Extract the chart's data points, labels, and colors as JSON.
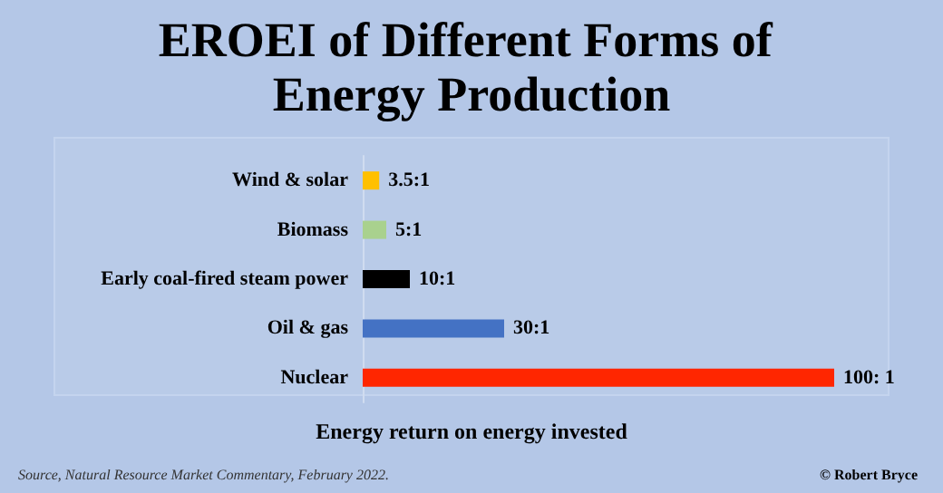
{
  "chart_data": {
    "type": "bar",
    "orientation": "horizontal",
    "title": "EROEI of Different Forms of Energy Production",
    "xlabel": "Energy return on energy invested",
    "categories": [
      "Wind & solar",
      "Biomass",
      "Early coal-fired steam power",
      "Oil & gas",
      "Nuclear"
    ],
    "values": [
      3.5,
      5,
      10,
      30,
      100
    ],
    "value_labels": [
      "3.5:1",
      "5:1",
      "10:1",
      "30:1",
      "100: 1"
    ],
    "colors": [
      "#ffc000",
      "#a9d18e",
      "#000000",
      "#4472c4",
      "#ff2600"
    ],
    "grid": false,
    "annotations": [
      "Source, Natural Resource Market Commentary, February 2022.",
      "© Robert Bryce"
    ]
  }
}
